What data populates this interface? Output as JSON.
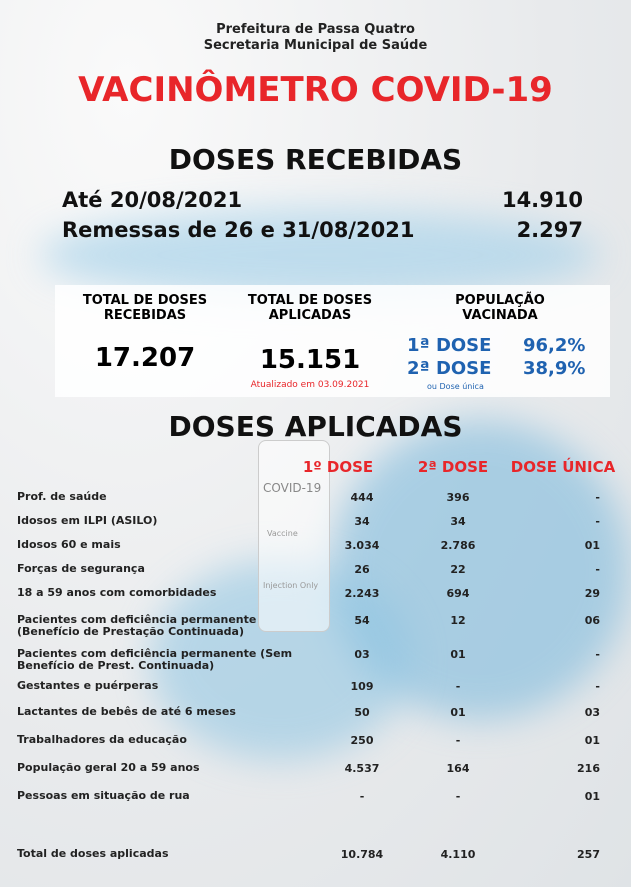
{
  "header": {
    "org_line1": "Prefeitura de Passa Quatro",
    "org_line2": "Secretaria Municipal de Saúde",
    "title": "VACINÔMETRO COVID-19"
  },
  "received": {
    "heading": "DOSES RECEBIDAS",
    "items": [
      {
        "label": "Até 20/08/2021",
        "value": "14.910"
      },
      {
        "label": "Remessas de 26 e 31/08/2021",
        "value": "2.297"
      }
    ]
  },
  "summary": {
    "total_received": {
      "label": "TOTAL DE DOSES RECEBIDAS",
      "value": "17.207"
    },
    "total_applied": {
      "label": "TOTAL DE DOSES APLICADAS",
      "value": "15.151",
      "note": "Atualizado em 03.09.2021"
    },
    "population": {
      "label": "POPULAÇÃO VACINADA",
      "doses": [
        {
          "label": "1ª DOSE",
          "value": "96,2%"
        },
        {
          "label": "2ª DOSE",
          "value": "38,9%"
        }
      ],
      "note": "ou Dose única"
    }
  },
  "image": {
    "vial_texts": [
      "COVID-19",
      "Vaccine",
      "Injection Only"
    ]
  },
  "applied": {
    "heading": "DOSES APLICADAS",
    "columns": [
      "1º DOSE",
      "2ª DOSE",
      "DOSE ÚNICA"
    ],
    "rows": [
      [
        "Prof. de saúde",
        "444",
        "396",
        "-"
      ],
      [
        "Idosos em ILPI (ASILO)",
        "34",
        "34",
        "-"
      ],
      [
        "Idosos 60 e mais",
        "3.034",
        "2.786",
        "01"
      ],
      [
        "Forças de segurança",
        "26",
        "22",
        "-"
      ],
      [
        "18 a 59 anos com comorbidades",
        "2.243",
        "694",
        "29"
      ],
      [
        "Pacientes com deficiência permanente (Benefício de Prestação Continuada)",
        "54",
        "12",
        "06"
      ],
      [
        "Pacientes com deficiência permanente (Sem Benefício de Prest. Continuada)",
        "03",
        "01",
        "-"
      ],
      [
        "Gestantes e puérperas",
        "109",
        "-",
        "-"
      ],
      [
        "Lactantes de bebês de até 6 meses",
        "50",
        "01",
        "03"
      ],
      [
        "Trabalhadores da educação",
        "250",
        "-",
        "01"
      ],
      [
        "População geral 20 a 59 anos",
        "4.537",
        "164",
        "216"
      ],
      [
        "Pessoas em situação de rua",
        "-",
        "-",
        "01"
      ]
    ],
    "total": [
      "Total de doses aplicadas",
      "10.784",
      "4.110",
      "257"
    ]
  }
}
